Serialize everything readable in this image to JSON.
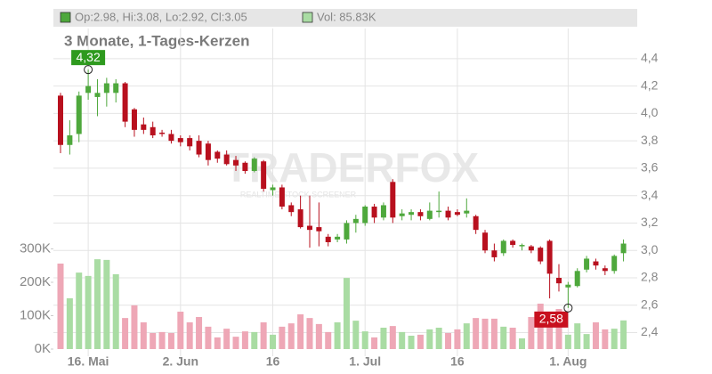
{
  "chart_data": {
    "type": "candlestick",
    "title": "3 Monate, 1-Tages-Kerzen",
    "legend": {
      "ohlc": "Op:2.98, Hi:3.08, Lo:2.92, Cl:3.05",
      "volume": "Vol: 85.83K"
    },
    "watermark": "TRADERFOX",
    "watermark_sub": "REALTIME STOCK SCREENER",
    "categories": [
      null,
      null,
      null,
      "16. Mai",
      null,
      null,
      null,
      null,
      null,
      null,
      null,
      null,
      null,
      "2. Jun",
      null,
      null,
      null,
      null,
      null,
      null,
      null,
      null,
      null,
      "16",
      null,
      null,
      null,
      null,
      null,
      null,
      null,
      null,
      null,
      "1. Jul",
      null,
      null,
      null,
      null,
      null,
      null,
      null,
      null,
      null,
      "16",
      null,
      null,
      null,
      null,
      null,
      null,
      null,
      null,
      null,
      null,
      null,
      "1. Aug",
      null,
      null,
      null,
      null,
      null,
      null
    ],
    "open": [
      4.13,
      3.77,
      3.85,
      4.15,
      4.12,
      4.15,
      4.15,
      4.22,
      4.03,
      3.92,
      3.9,
      3.86,
      3.85,
      3.82,
      3.82,
      3.8,
      3.78,
      3.72,
      3.7,
      3.66,
      3.64,
      3.58,
      3.65,
      3.44,
      3.46,
      3.33,
      3.3,
      3.18,
      3.17,
      3.1,
      3.08,
      3.08,
      3.2,
      3.2,
      3.32,
      3.24,
      3.5,
      3.25,
      3.26,
      3.28,
      3.23,
      3.28,
      3.29,
      3.28,
      3.27,
      3.25,
      3.13,
      3.0,
      2.98,
      3.07,
      3.03,
      3.03,
      3.02,
      3.07,
      2.8,
      2.73,
      2.74,
      2.86,
      2.92,
      2.87,
      2.85,
      2.98
    ],
    "high": [
      4.15,
      3.95,
      4.16,
      4.32,
      4.25,
      4.26,
      4.25,
      4.23,
      4.04,
      3.97,
      3.94,
      3.88,
      3.88,
      3.84,
      3.84,
      3.84,
      3.8,
      3.73,
      3.73,
      3.69,
      3.65,
      3.68,
      3.66,
      3.48,
      3.48,
      3.35,
      3.4,
      3.4,
      3.35,
      3.12,
      3.12,
      3.22,
      3.26,
      3.33,
      3.34,
      3.35,
      3.52,
      3.3,
      3.3,
      3.3,
      3.35,
      3.43,
      3.32,
      3.3,
      3.38,
      3.26,
      3.15,
      3.05,
      3.08,
      3.08,
      3.05,
      3.04,
      3.03,
      3.08,
      2.9,
      2.77,
      2.87,
      2.96,
      2.94,
      2.89,
      2.97,
      3.08
    ],
    "low": [
      3.71,
      3.7,
      3.79,
      4.1,
      3.98,
      4.05,
      4.08,
      3.9,
      3.83,
      3.85,
      3.82,
      3.83,
      3.78,
      3.76,
      3.73,
      3.68,
      3.62,
      3.64,
      3.62,
      3.58,
      3.56,
      3.57,
      3.43,
      3.4,
      3.3,
      3.25,
      3.16,
      3.02,
      3.03,
      3.03,
      3.06,
      3.05,
      3.13,
      3.18,
      3.2,
      3.22,
      3.2,
      3.22,
      3.22,
      3.22,
      3.22,
      3.24,
      3.22,
      3.25,
      3.24,
      3.12,
      2.98,
      2.92,
      2.96,
      3.02,
      3.0,
      2.98,
      2.9,
      2.65,
      2.7,
      2.58,
      2.73,
      2.84,
      2.86,
      2.82,
      2.83,
      2.92
    ],
    "close": [
      3.77,
      3.84,
      4.13,
      4.2,
      4.15,
      4.22,
      4.22,
      3.94,
      3.88,
      3.88,
      3.84,
      3.85,
      3.8,
      3.79,
      3.76,
      3.7,
      3.66,
      3.67,
      3.63,
      3.62,
      3.58,
      3.67,
      3.45,
      3.46,
      3.32,
      3.28,
      3.17,
      3.15,
      3.14,
      3.06,
      3.1,
      3.2,
      3.23,
      3.32,
      3.24,
      3.33,
      3.24,
      3.27,
      3.28,
      3.25,
      3.29,
      3.29,
      3.24,
      3.26,
      3.29,
      3.15,
      3.0,
      2.95,
      3.07,
      3.04,
      3.04,
      3.0,
      2.92,
      2.83,
      2.76,
      2.75,
      2.85,
      2.94,
      2.89,
      2.85,
      2.96,
      3.05
    ],
    "volume": {
      "axis": "y2",
      "values": [
        256,
        152,
        229,
        219,
        269,
        267,
        224,
        93,
        131,
        80,
        48,
        51,
        48,
        112,
        80,
        96,
        67,
        35,
        61,
        37,
        53,
        51,
        80,
        43,
        67,
        77,
        104,
        93,
        75,
        51,
        80,
        213,
        85,
        53,
        35,
        64,
        69,
        51,
        40,
        43,
        59,
        64,
        48,
        59,
        77,
        93,
        91,
        91,
        67,
        64,
        32,
        96,
        136,
        112,
        120,
        43,
        77,
        45,
        80,
        59,
        61,
        85.83
      ]
    },
    "up_color": "#4ea83c",
    "down_color": "#b8101e",
    "volume_up_color": "#a9dca3",
    "volume_down_color": "#eea7b6",
    "max_label": {
      "value": 4.32,
      "label": "4,32"
    },
    "min_label": {
      "value": 2.58,
      "label": "2,58"
    },
    "ylim": [
      2.28,
      4.62
    ],
    "yticks": [
      {
        "value": 2.4,
        "label": "2,4"
      },
      {
        "value": 2.6,
        "label": "2,6"
      },
      {
        "value": 2.8,
        "label": "2,8"
      },
      {
        "value": 3.0,
        "label": "3,0"
      },
      {
        "value": 3.2,
        "label": "3,2"
      },
      {
        "value": 3.4,
        "label": "3,4"
      },
      {
        "value": 3.6,
        "label": "3,6"
      },
      {
        "value": 3.8,
        "label": "3,8"
      },
      {
        "value": 4.0,
        "label": "4,0"
      },
      {
        "value": 4.2,
        "label": "4,2"
      },
      {
        "value": 4.4,
        "label": "4,4"
      }
    ],
    "y2lim": [
      0,
      960
    ],
    "y2ticks": [
      {
        "value": 0,
        "label": "0K"
      },
      {
        "value": 100,
        "label": "100K"
      },
      {
        "value": 200,
        "label": "200K"
      },
      {
        "value": 300,
        "label": "300K"
      }
    ],
    "grid": true
  }
}
